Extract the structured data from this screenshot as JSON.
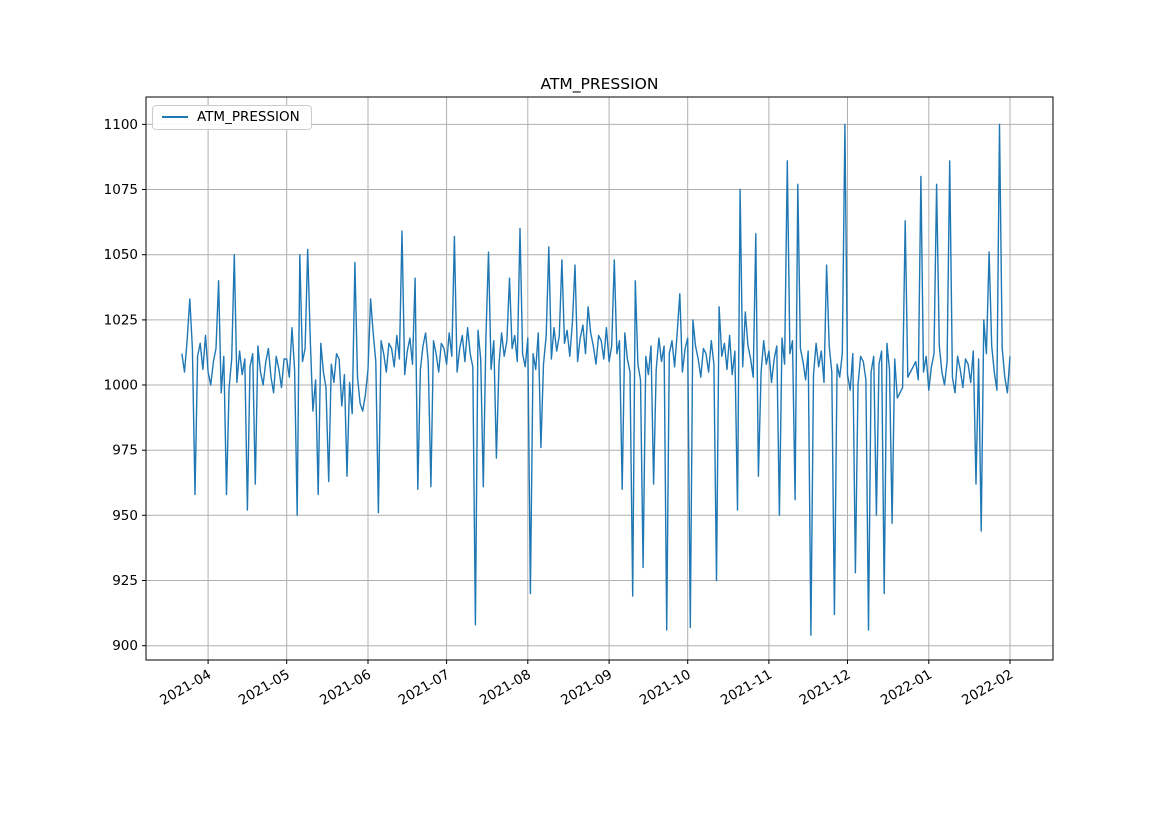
{
  "chart_data": {
    "type": "line",
    "title": "ATM_PRESSION",
    "legend": {
      "label": "ATM_PRESSION",
      "position": "upper left"
    },
    "series_color": "#1f77b4",
    "grid": true,
    "grid_color": "#b0b0b0",
    "background_color": "#ffffff",
    "xlabel": "",
    "ylabel": "",
    "x_tick_labels": [
      "2021-04",
      "2021-05",
      "2021-06",
      "2021-07",
      "2021-08",
      "2021-09",
      "2021-10",
      "2021-11",
      "2021-12",
      "2022-01",
      "2022-02"
    ],
    "x_tick_days": [
      10,
      40,
      71,
      101,
      132,
      163,
      193,
      224,
      254,
      285,
      316
    ],
    "x_tick_rotation_deg": 30,
    "y_ticks": [
      900,
      925,
      950,
      975,
      1000,
      1025,
      1050,
      1075,
      1100
    ],
    "xlim_days": [
      -13.7,
      332.4
    ],
    "ylim": [
      894.5,
      1110.5
    ],
    "value_min": 904,
    "value_max": 1100,
    "series": [
      {
        "name": "ATM_PRESSION",
        "start_day": 0,
        "step_days": 1,
        "values": [
          1012,
          1005,
          1017,
          1033,
          1014,
          958,
          1011,
          1016,
          1006,
          1019,
          1005,
          1000,
          1009,
          1014,
          1040,
          997,
          1011,
          958,
          999,
          1010,
          1050,
          1001,
          1013,
          1004,
          1010,
          952,
          1007,
          1012,
          962,
          1015,
          1005,
          1000,
          1009,
          1014,
          1003,
          997,
          1011,
          1006,
          999,
          1010,
          1010,
          1003,
          1022,
          1006,
          950,
          1050,
          1009,
          1014,
          1052,
          1017,
          990,
          1002,
          958,
          1016,
          1005,
          999,
          963,
          1008,
          1001,
          1012,
          1010,
          992,
          1004,
          965,
          1001,
          989,
          1047,
          1003,
          993,
          990,
          996,
          1006,
          1033,
          1020,
          1009,
          951,
          1017,
          1012,
          1005,
          1016,
          1014,
          1007,
          1019,
          1010,
          1059,
          1004,
          1013,
          1018,
          1008,
          1041,
          960,
          1006,
          1015,
          1020,
          1009,
          961,
          1017,
          1012,
          1005,
          1016,
          1014,
          1008,
          1020,
          1011,
          1057,
          1005,
          1014,
          1019,
          1009,
          1022,
          1012,
          1007,
          908,
          1021,
          1010,
          961,
          1018,
          1051,
          1006,
          1017,
          972,
          1008,
          1020,
          1011,
          1017,
          1041,
          1014,
          1019,
          1009,
          1060,
          1012,
          1007,
          1018,
          920,
          1012,
          1006,
          1020,
          976,
          1008,
          1019,
          1053,
          1010,
          1022,
          1013,
          1019,
          1048,
          1016,
          1021,
          1011,
          1024,
          1046,
          1009,
          1018,
          1023,
          1012,
          1030,
          1020,
          1015,
          1008,
          1019,
          1017,
          1010,
          1022,
          1009,
          1015,
          1048,
          1012,
          1017,
          960,
          1020,
          1010,
          1005,
          919,
          1040,
          1008,
          1002,
          930,
          1011,
          1004,
          1015,
          962,
          1006,
          1018,
          1009,
          1015,
          906,
          1012,
          1017,
          1007,
          1020,
          1035,
          1005,
          1014,
          1018,
          907,
          1025,
          1015,
          1010,
          1003,
          1014,
          1012,
          1005,
          1017,
          1008,
          925,
          1030,
          1011,
          1016,
          1006,
          1019,
          1004,
          1013,
          952,
          1075,
          1007,
          1028,
          1015,
          1010,
          1003,
          1058,
          965,
          1005,
          1017,
          1008,
          1013,
          1001,
          1010,
          1015,
          950,
          1018,
          1008,
          1086,
          1012,
          1017,
          956,
          1077,
          1014,
          1009,
          1002,
          1013,
          904,
          1004,
          1016,
          1007,
          1013,
          1001,
          1046,
          1015,
          1005,
          912,
          1008,
          1003,
          1012,
          1100,
          1004,
          998,
          1012,
          928,
          1000,
          1011,
          1009,
          1002,
          906,
          1005,
          1011,
          950,
          1008,
          1013,
          920,
          1016,
          1006,
          947,
          1010,
          995,
          997,
          999,
          1063,
          1003,
          1005,
          1007,
          1009,
          1002,
          1080,
          1005,
          1011,
          998,
          1007,
          1012,
          1077,
          1015,
          1005,
          1000,
          1009,
          1086,
          1003,
          997,
          1011,
          1006,
          999,
          1010,
          1008,
          1001,
          1013,
          962,
          1010,
          944,
          1025,
          1012,
          1051,
          1015,
          1005,
          998,
          1100,
          1014,
          1003,
          997,
          1011
        ]
      }
    ]
  }
}
